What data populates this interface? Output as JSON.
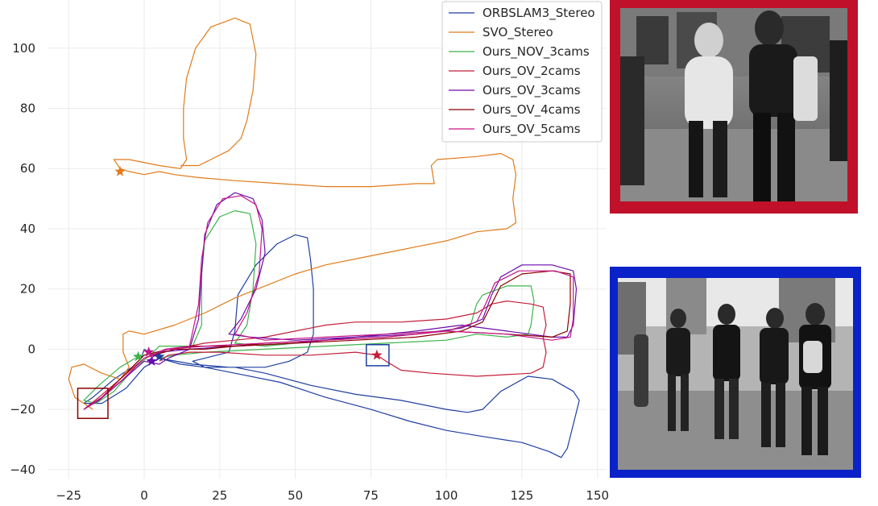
{
  "chart_data": {
    "type": "line",
    "title": "",
    "xlabel": "",
    "ylabel": "",
    "xlim": [
      -32,
      153
    ],
    "ylim": [
      -43,
      116
    ],
    "xticks": [
      -25,
      0,
      25,
      50,
      75,
      100,
      125,
      150
    ],
    "yticks": [
      -40,
      -20,
      0,
      20,
      40,
      60,
      80,
      100
    ],
    "xtick_labels": [
      "−25",
      "0",
      "25",
      "50",
      "75",
      "100",
      "125",
      "150"
    ],
    "ytick_labels": [
      "−40",
      "−20",
      "0",
      "20",
      "40",
      "60",
      "80",
      "100"
    ],
    "grid": true,
    "legend_position": "top-right",
    "series": [
      {
        "name": "ORBSLAM3_Stereo",
        "color": "#1f3fa0",
        "points": [
          [
            0,
            0
          ],
          [
            -1,
            -3
          ],
          [
            -4,
            -6
          ],
          [
            -10,
            -10
          ],
          [
            -17,
            -16
          ],
          [
            -20,
            -18
          ],
          [
            -14,
            -18
          ],
          [
            -6,
            -13
          ],
          [
            0,
            -6
          ],
          [
            5,
            -3
          ],
          [
            12,
            -5
          ],
          [
            20,
            -6
          ],
          [
            30,
            -6
          ],
          [
            40,
            -8
          ],
          [
            55,
            -12
          ],
          [
            70,
            -15
          ],
          [
            85,
            -17
          ],
          [
            100,
            -20
          ],
          [
            107,
            -21
          ],
          [
            112,
            -20
          ],
          [
            118,
            -14
          ],
          [
            127,
            -9
          ],
          [
            135,
            -10
          ],
          [
            142,
            -14
          ],
          [
            144,
            -17
          ],
          [
            142,
            -25
          ],
          [
            140,
            -33
          ],
          [
            138,
            -36
          ],
          [
            134,
            -34
          ],
          [
            125,
            -31
          ],
          [
            112,
            -29
          ],
          [
            100,
            -27
          ],
          [
            88,
            -24
          ],
          [
            75,
            -20
          ],
          [
            60,
            -16
          ],
          [
            45,
            -11
          ],
          [
            30,
            -8
          ],
          [
            20,
            -6
          ],
          [
            16,
            -4
          ],
          [
            20,
            -3
          ],
          [
            28,
            -1
          ],
          [
            30,
            6
          ],
          [
            31,
            18
          ],
          [
            37,
            28
          ],
          [
            44,
            35
          ],
          [
            50,
            38
          ],
          [
            54,
            37
          ],
          [
            55,
            30
          ],
          [
            56,
            20
          ],
          [
            56,
            5
          ],
          [
            54,
            -1
          ],
          [
            48,
            -4
          ],
          [
            40,
            -6
          ],
          [
            28,
            -6
          ],
          [
            16,
            -5
          ],
          [
            5,
            -3
          ],
          [
            0,
            0
          ]
        ]
      },
      {
        "name": "SVO_Stereo",
        "color": "#e07b1a",
        "points": [
          [
            -17,
            -20
          ],
          [
            -20,
            -18
          ],
          [
            -23,
            -16
          ],
          [
            -25,
            -10
          ],
          [
            -24,
            -6
          ],
          [
            -20,
            -5
          ],
          [
            -14,
            -8
          ],
          [
            -8,
            -10
          ],
          [
            -5,
            -6
          ],
          [
            -7,
            -1
          ],
          [
            -7,
            5
          ],
          [
            -5,
            6
          ],
          [
            0,
            5
          ],
          [
            10,
            8
          ],
          [
            20,
            12
          ],
          [
            30,
            17
          ],
          [
            40,
            21
          ],
          [
            50,
            25
          ],
          [
            60,
            28
          ],
          [
            75,
            31
          ],
          [
            90,
            34
          ],
          [
            100,
            36
          ],
          [
            110,
            39
          ],
          [
            120,
            40
          ],
          [
            123,
            42
          ],
          [
            122,
            50
          ],
          [
            123,
            58
          ],
          [
            122,
            63
          ],
          [
            118,
            65
          ],
          [
            110,
            64
          ],
          [
            97,
            63
          ],
          [
            95,
            61
          ],
          [
            96,
            55
          ],
          [
            90,
            55
          ],
          [
            75,
            54
          ],
          [
            60,
            54
          ],
          [
            45,
            55
          ],
          [
            30,
            56
          ],
          [
            18,
            57
          ],
          [
            10,
            58
          ],
          [
            5,
            59
          ],
          [
            0,
            58
          ],
          [
            -5,
            59
          ],
          [
            -8,
            60
          ],
          [
            -10,
            63
          ],
          [
            -5,
            63
          ],
          [
            5,
            61
          ],
          [
            12,
            60
          ],
          [
            14,
            63
          ],
          [
            13,
            70
          ],
          [
            13,
            80
          ],
          [
            14,
            90
          ],
          [
            17,
            100
          ],
          [
            22,
            107
          ],
          [
            30,
            110
          ],
          [
            35,
            108
          ],
          [
            37,
            98
          ],
          [
            36,
            86
          ],
          [
            34,
            76
          ],
          [
            32,
            70
          ],
          [
            28,
            66
          ],
          [
            22,
            63
          ],
          [
            18,
            61
          ],
          [
            12,
            61
          ]
        ]
      },
      {
        "name": "Ours_NOV_3cams",
        "color": "#3cb44b",
        "points": [
          [
            -3,
            -3
          ],
          [
            -8,
            -6
          ],
          [
            -15,
            -12
          ],
          [
            -20,
            -17
          ],
          [
            -16,
            -18
          ],
          [
            -10,
            -14
          ],
          [
            -3,
            -6
          ],
          [
            2,
            -2
          ],
          [
            5,
            1
          ],
          [
            10,
            1
          ],
          [
            16,
            1
          ],
          [
            19,
            8
          ],
          [
            19,
            25
          ],
          [
            20,
            36
          ],
          [
            25,
            44
          ],
          [
            30,
            46
          ],
          [
            35,
            45
          ],
          [
            37,
            35
          ],
          [
            36,
            20
          ],
          [
            34,
            8
          ],
          [
            30,
            2
          ],
          [
            40,
            1
          ],
          [
            60,
            3
          ],
          [
            80,
            5
          ],
          [
            100,
            6
          ],
          [
            108,
            8
          ],
          [
            110,
            15
          ],
          [
            112,
            18
          ],
          [
            120,
            21
          ],
          [
            128,
            21
          ],
          [
            129,
            16
          ],
          [
            128,
            8
          ],
          [
            127,
            5
          ],
          [
            120,
            4
          ],
          [
            110,
            5
          ],
          [
            100,
            3
          ],
          [
            80,
            2
          ],
          [
            60,
            1
          ],
          [
            40,
            0
          ],
          [
            20,
            -1
          ],
          [
            10,
            -2
          ],
          [
            5,
            -3
          ]
        ]
      },
      {
        "name": "Ours_OV_2cams",
        "color": "#c41e3a",
        "points": [
          [
            -20,
            -20
          ],
          [
            -15,
            -16
          ],
          [
            -8,
            -10
          ],
          [
            0,
            -3
          ],
          [
            10,
            0
          ],
          [
            20,
            2
          ],
          [
            30,
            3
          ],
          [
            40,
            4
          ],
          [
            50,
            6
          ],
          [
            60,
            8
          ],
          [
            70,
            9
          ],
          [
            85,
            9
          ],
          [
            100,
            10
          ],
          [
            110,
            12
          ],
          [
            115,
            15
          ],
          [
            120,
            16
          ],
          [
            128,
            15
          ],
          [
            132,
            14
          ],
          [
            133,
            8
          ],
          [
            132,
            4
          ],
          [
            133,
            -1
          ],
          [
            132,
            -6
          ],
          [
            128,
            -8
          ],
          [
            110,
            -9
          ],
          [
            95,
            -8
          ],
          [
            85,
            -7
          ],
          [
            80,
            -4
          ],
          [
            77,
            -2
          ],
          [
            70,
            -1
          ],
          [
            55,
            -2
          ],
          [
            40,
            -2
          ],
          [
            25,
            -1
          ],
          [
            15,
            -1
          ],
          [
            8,
            -2
          ],
          [
            5,
            -4
          ]
        ]
      },
      {
        "name": "Ours_OV_3cams",
        "color": "#6a0dad",
        "points": [
          [
            -20,
            -20
          ],
          [
            -15,
            -17
          ],
          [
            -8,
            -11
          ],
          [
            0,
            -4
          ],
          [
            5,
            -5
          ],
          [
            8,
            -3
          ],
          [
            15,
            0
          ],
          [
            18,
            10
          ],
          [
            19,
            25
          ],
          [
            20,
            38
          ],
          [
            24,
            48
          ],
          [
            30,
            52
          ],
          [
            36,
            50
          ],
          [
            39,
            43
          ],
          [
            40,
            32
          ],
          [
            37,
            20
          ],
          [
            32,
            10
          ],
          [
            28,
            5
          ],
          [
            35,
            4
          ],
          [
            50,
            3
          ],
          [
            70,
            4
          ],
          [
            90,
            5
          ],
          [
            105,
            7
          ],
          [
            112,
            10
          ],
          [
            115,
            18
          ],
          [
            118,
            24
          ],
          [
            125,
            28
          ],
          [
            135,
            28
          ],
          [
            142,
            26
          ],
          [
            143,
            20
          ],
          [
            142,
            8
          ],
          [
            140,
            4
          ],
          [
            135,
            4
          ],
          [
            120,
            6
          ],
          [
            105,
            8
          ],
          [
            90,
            6
          ],
          [
            70,
            4
          ],
          [
            50,
            2
          ],
          [
            30,
            1
          ],
          [
            15,
            0
          ],
          [
            5,
            -1
          ],
          [
            1,
            -4
          ]
        ]
      },
      {
        "name": "Ours_OV_4cams",
        "color": "#8b0000",
        "points": [
          [
            -20,
            -20
          ],
          [
            -14,
            -16
          ],
          [
            -7,
            -9
          ],
          [
            0,
            -2
          ],
          [
            8,
            0
          ],
          [
            16,
            1
          ],
          [
            30,
            1
          ],
          [
            50,
            2
          ],
          [
            70,
            3
          ],
          [
            90,
            4
          ],
          [
            105,
            6
          ],
          [
            112,
            9
          ],
          [
            115,
            15
          ],
          [
            118,
            21
          ],
          [
            125,
            25
          ],
          [
            135,
            26
          ],
          [
            141,
            25
          ],
          [
            141,
            15
          ],
          [
            140,
            6
          ],
          [
            135,
            4
          ],
          [
            120,
            5
          ],
          [
            100,
            6
          ],
          [
            80,
            4
          ],
          [
            60,
            3
          ],
          [
            40,
            2
          ],
          [
            20,
            0
          ],
          [
            10,
            0
          ],
          [
            3,
            -2
          ]
        ]
      },
      {
        "name": "Ours_OV_5cams",
        "color": "#c71585",
        "points": [
          [
            -20,
            -20
          ],
          [
            -14,
            -16
          ],
          [
            -7,
            -10
          ],
          [
            0,
            -3
          ],
          [
            7,
            0
          ],
          [
            15,
            1
          ],
          [
            18,
            15
          ],
          [
            19,
            30
          ],
          [
            21,
            42
          ],
          [
            26,
            50
          ],
          [
            32,
            51
          ],
          [
            37,
            48
          ],
          [
            39,
            40
          ],
          [
            38,
            25
          ],
          [
            34,
            12
          ],
          [
            30,
            5
          ],
          [
            40,
            3
          ],
          [
            60,
            4
          ],
          [
            80,
            5
          ],
          [
            100,
            6
          ],
          [
            110,
            9
          ],
          [
            113,
            15
          ],
          [
            116,
            22
          ],
          [
            124,
            26
          ],
          [
            136,
            26
          ],
          [
            142,
            24
          ],
          [
            142,
            10
          ],
          [
            141,
            4
          ],
          [
            135,
            3
          ],
          [
            120,
            5
          ],
          [
            100,
            6
          ],
          [
            80,
            4
          ],
          [
            60,
            3
          ],
          [
            40,
            2
          ],
          [
            20,
            1
          ],
          [
            8,
            0
          ],
          [
            2,
            -2
          ]
        ]
      }
    ],
    "markers": [
      {
        "x": -8,
        "y": 59,
        "color": "#e07b1a"
      },
      {
        "x": -2,
        "y": -2.5,
        "color": "#3cb44b"
      },
      {
        "x": 1.5,
        "y": -1,
        "color": "#c71585"
      },
      {
        "x": 2.5,
        "y": -4,
        "color": "#6a0dad"
      },
      {
        "x": 5,
        "y": -2.5,
        "color": "#1f3fa0"
      },
      {
        "x": 77,
        "y": -2,
        "color": "#c41e3a"
      }
    ],
    "boxes": [
      {
        "x0": -22,
        "x1": -12,
        "y0": -23,
        "y1": -13,
        "color": "#8b0000"
      },
      {
        "x0": 73.5,
        "x1": 81,
        "y0": -5.5,
        "y1": 1.5,
        "color": "#1f3fa0"
      }
    ]
  },
  "insets": [
    {
      "frame_color": "#c0102a",
      "content": "grayscale street photo of people walking"
    },
    {
      "frame_color": "#0a22c8",
      "content": "grayscale street photo of a group walking"
    }
  ]
}
